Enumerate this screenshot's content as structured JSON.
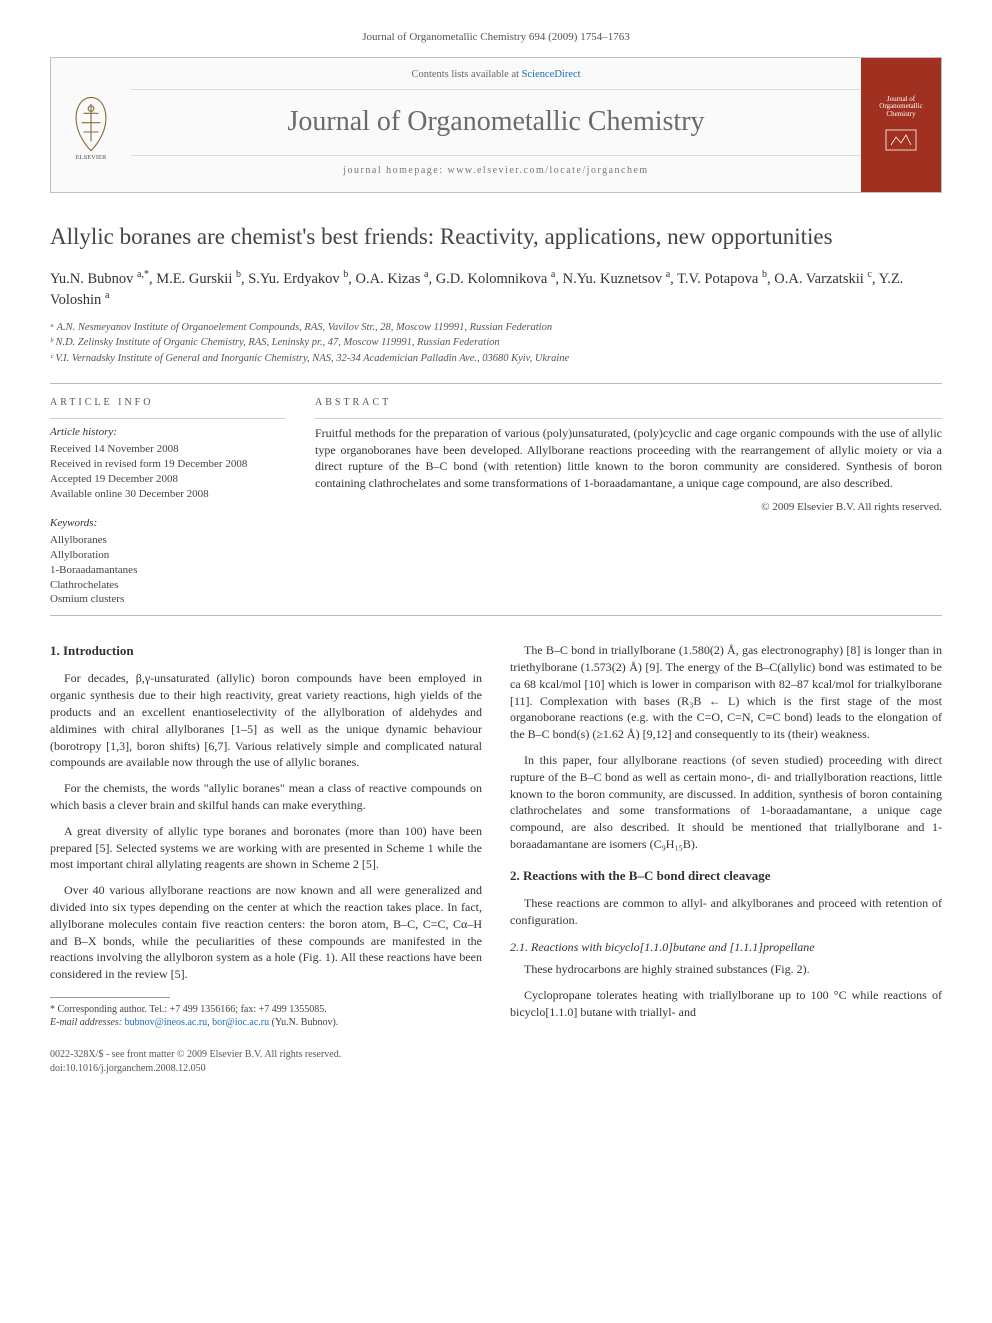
{
  "journal_ref": "Journal of Organometallic Chemistry 694 (2009) 1754–1763",
  "header": {
    "contents_prefix": "Contents lists available at ",
    "contents_link": "ScienceDirect",
    "journal_name": "Journal of Organometallic Chemistry",
    "homepage_label": "journal homepage: www.elsevier.com/locate/jorganchem",
    "cover_text_top": "Journal of",
    "cover_text_mid": "Organometallic",
    "cover_text_bot": "Chemistry"
  },
  "title": "Allylic boranes are chemist's best friends: Reactivity, applications, new opportunities",
  "authors_html": "Yu.N. Bubnov <sup>a,*</sup>, M.E. Gurskii <sup>b</sup>, S.Yu. Erdyakov <sup>b</sup>, O.A. Kizas <sup>a</sup>, G.D. Kolomnikova <sup>a</sup>, N.Yu. Kuznetsov <sup>a</sup>, T.V. Potapova <sup>b</sup>, O.A. Varzatskii <sup>c</sup>, Y.Z. Voloshin <sup>a</sup>",
  "affiliations": [
    "ᵃ A.N. Nesmeyanov Institute of Organoelement Compounds, RAS, Vavilov Str., 28, Moscow 119991, Russian Federation",
    "ᵇ N.D. Zelinsky Institute of Organic Chemistry, RAS, Leninsky pr., 47, Moscow 119991, Russian Federation",
    "ᶜ V.I. Vernadsky Institute of General and Inorganic Chemistry, NAS, 32-34 Academician Palladin Ave., 03680 Kyiv, Ukraine"
  ],
  "article_info": {
    "head": "ARTICLE INFO",
    "history_head": "Article history:",
    "history": [
      "Received 14 November 2008",
      "Received in revised form 19 December 2008",
      "Accepted 19 December 2008",
      "Available online 30 December 2008"
    ],
    "kw_head": "Keywords:",
    "keywords": [
      "Allylboranes",
      "Allylboration",
      "1-Boraadamantanes",
      "Clathrochelates",
      "Osmium clusters"
    ]
  },
  "abstract": {
    "head": "ABSTRACT",
    "text": "Fruitful methods for the preparation of various (poly)unsaturated, (poly)cyclic and cage organic compounds with the use of allylic type organoboranes have been developed. Allylborane reactions proceeding with the rearrangement of allylic moiety or via a direct rupture of the B–C bond (with retention) little known to the boron community are considered. Synthesis of boron containing clathrochelates and some transformations of 1-boraadamantane, a unique cage compound, are also described.",
    "copyright": "© 2009 Elsevier B.V. All rights reserved."
  },
  "body": {
    "sec1_head": "1. Introduction",
    "p1": "For decades, β,γ-unsaturated (allylic) boron compounds have been employed in organic synthesis due to their high reactivity, great variety reactions, high yields of the products and an excellent enantioselectivity of the allylboration of aldehydes and aldimines with chiral allylboranes [1–5] as well as the unique dynamic behaviour (borotropy [1,3], boron shifts) [6,7]. Various relatively simple and complicated natural compounds are available now through the use of allylic boranes.",
    "p2": "For the chemists, the words \"allylic boranes\" mean a class of reactive compounds on which basis a clever brain and skilful hands can make everything.",
    "p3": "A great diversity of allylic type boranes and boronates (more than 100) have been prepared [5]. Selected systems we are working with are presented in Scheme 1 while the most important chiral allylating reagents are shown in Scheme 2 [5].",
    "p4": "Over 40 various allylborane reactions are now known and all were generalized and divided into six types depending on the center at which the reaction takes place. In fact, allylborane molecules contain five reaction centers: the boron atom, B–C, C=C, Cα–H and B–X bonds, while the peculiarities of these compounds are manifested in the reactions involving the allylboron system as a hole (Fig. 1). All these reactions have been considered in the review [5].",
    "p5": "The B–C bond in triallylborane (1.580(2) Å, gas electronography) [8] is longer than in triethylborane (1.573(2) Å) [9]. The energy of the B–C(allylic) bond was estimated to be ca 68 kcal/mol [10] which is lower in comparison with 82–87 kcal/mol for trialkylborane [11]. Complexation with bases (R₃B ← L) which is the first stage of the most organoborane reactions (e.g. with the C=O, C=N, C≡C bond) leads to the elongation of the B–C bond(s) (≥1.62 Å) [9,12] and consequently to its (their) weakness.",
    "p6": "In this paper, four allylborane reactions (of seven studied) proceeding with direct rupture of the B–C bond as well as certain mono-, di- and triallylboration reactions, little known to the boron community, are discussed. In addition, synthesis of boron containing clathrochelates and some transformations of 1-boraadamantane, a unique cage compound, are also described. It should be mentioned that triallylborane and 1-boraadamantane are isomers (C₉H₁₅B).",
    "sec2_head": "2. Reactions with the B–C bond direct cleavage",
    "p7": "These reactions are common to allyl- and alkylboranes and proceed with retention of configuration.",
    "sec21_head": "2.1. Reactions with bicyclo[1.1.0]butane and [1.1.1]propellane",
    "p8": "These hydrocarbons are highly strained substances (Fig. 2).",
    "p9": "Cyclopropane tolerates heating with triallylborane up to 100 °C while reactions of bicyclo[1.1.0] butane with triallyl- and"
  },
  "footnote": {
    "corr": "* Corresponding author. Tel.: +7 499 1356166; fax: +7 499 1355085.",
    "email_label": "E-mail addresses:",
    "email1": "bubnov@ineos.ac.ru",
    "email2": "bor@ioc.ac.ru",
    "email_tail": "(Yu.N. Bubnov)."
  },
  "footer": {
    "left1": "0022-328X/$ - see front matter © 2009 Elsevier B.V. All rights reserved.",
    "left2": "doi:10.1016/j.jorganchem.2008.12.050"
  },
  "colors": {
    "link": "#1a6bb8",
    "rule": "#bbbbbb",
    "cover_bg": "#a03020",
    "text": "#333333"
  }
}
